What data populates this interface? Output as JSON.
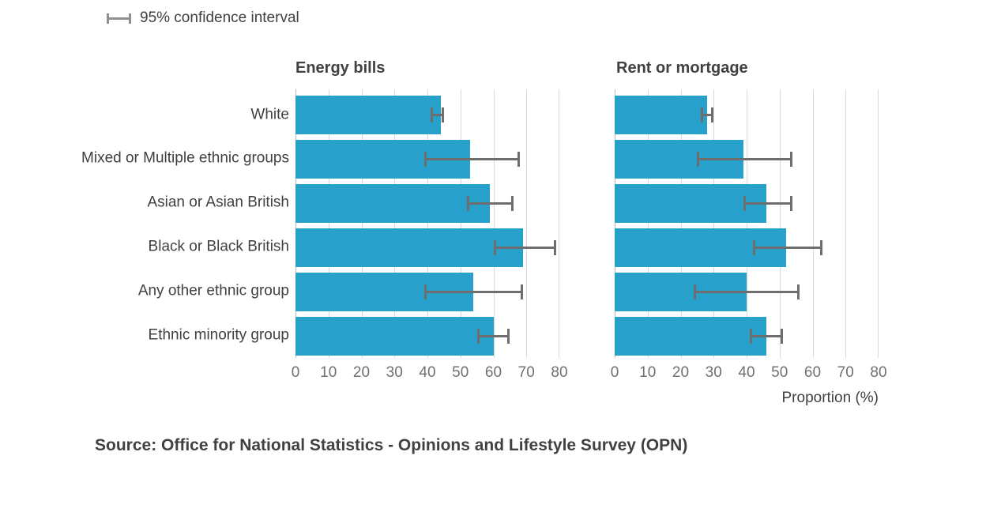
{
  "legend": {
    "label": "95% confidence interval",
    "icon": "error-bar-icon"
  },
  "x_axis": {
    "label": "Proportion (%)",
    "ticks": [
      0,
      10,
      20,
      30,
      40,
      50,
      60,
      70,
      80
    ],
    "max": 80
  },
  "categories": [
    "White",
    "Mixed or Multiple ethnic groups",
    "Asian or Asian British",
    "Black or Black British",
    "Any other ethnic group",
    "Ethnic minority group"
  ],
  "chart_data": [
    {
      "type": "bar",
      "orientation": "horizontal",
      "title": "Energy bills",
      "categories": [
        "White",
        "Mixed or Multiple ethnic groups",
        "Asian or Asian British",
        "Black or Black British",
        "Any other ethnic group",
        "Ethnic minority group"
      ],
      "values": [
        44,
        53,
        59,
        69,
        54,
        60
      ],
      "ci_low": [
        41,
        39,
        52,
        60,
        39,
        55
      ],
      "ci_high": [
        45,
        68,
        66,
        79,
        69,
        65
      ],
      "xlim": [
        0,
        80
      ],
      "xlabel": "Proportion (%)",
      "grid": true,
      "legend_position": "top-left"
    },
    {
      "type": "bar",
      "orientation": "horizontal",
      "title": "Rent or mortgage",
      "categories": [
        "White",
        "Mixed or Multiple ethnic groups",
        "Asian or Asian British",
        "Black or Black British",
        "Any other ethnic group",
        "Ethnic minority group"
      ],
      "values": [
        28,
        39,
        46,
        52,
        40,
        46
      ],
      "ci_low": [
        26,
        25,
        39,
        42,
        24,
        41
      ],
      "ci_high": [
        30,
        54,
        54,
        63,
        56,
        51
      ],
      "xlim": [
        0,
        80
      ],
      "xlabel": "Proportion (%)",
      "grid": true
    }
  ],
  "source": {
    "text": "Source: Office for National Statistics - Opinions and Lifestyle Survey (OPN)"
  },
  "colors": {
    "bar": "#27A0CC",
    "error_bar": "#6e6e6e",
    "legend_glyph": "#8f8f8f",
    "gridline": "#d9d9d9",
    "axis_line": "#bcbcbc",
    "tick_text": "#707071",
    "text": "#414042"
  }
}
